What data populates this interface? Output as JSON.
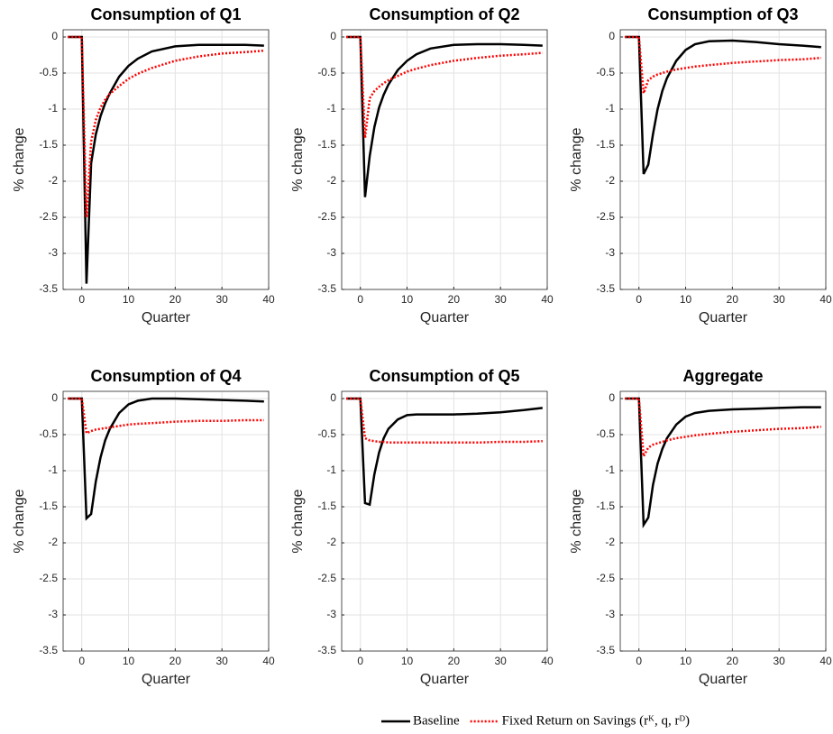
{
  "chart_data": [
    {
      "type": "line",
      "title": "Consumption of Q1",
      "xlabel": "Quarter",
      "ylabel": "% change",
      "x": [
        -3,
        -2,
        -1,
        0,
        1,
        2,
        3,
        4,
        5,
        6,
        8,
        10,
        12,
        15,
        20,
        25,
        30,
        35,
        39
      ],
      "series": [
        {
          "name": "Baseline",
          "color": "#000000",
          "linestyle": "solid",
          "values": [
            0,
            0,
            0,
            0,
            -3.42,
            -1.75,
            -1.35,
            -1.1,
            -0.92,
            -0.78,
            -0.55,
            -0.4,
            -0.3,
            -0.2,
            -0.13,
            -0.11,
            -0.11,
            -0.11,
            -0.12
          ]
        },
        {
          "name": "Fixed Return on Savings (rᴷ, q, rᴰ)",
          "color": "#ff0000",
          "linestyle": "dotted",
          "values": [
            0,
            0,
            0,
            0,
            -2.5,
            -1.45,
            -1.15,
            -0.98,
            -0.87,
            -0.79,
            -0.68,
            -0.58,
            -0.51,
            -0.43,
            -0.33,
            -0.27,
            -0.23,
            -0.21,
            -0.19
          ]
        }
      ],
      "xlim": [
        -4,
        40
      ],
      "xticks": [
        0,
        10,
        20,
        30,
        40
      ],
      "ylim": [
        -3.5,
        0.1
      ],
      "yticks": [
        0,
        -0.5,
        -1,
        -1.5,
        -2,
        -2.5,
        -3,
        -3.5
      ],
      "grid": true
    },
    {
      "type": "line",
      "title": "Consumption of Q2",
      "xlabel": "Quarter",
      "ylabel": "% change",
      "x": [
        -3,
        -2,
        -1,
        0,
        1,
        2,
        3,
        4,
        5,
        6,
        8,
        10,
        12,
        15,
        20,
        25,
        30,
        35,
        39
      ],
      "series": [
        {
          "name": "Baseline",
          "color": "#000000",
          "linestyle": "solid",
          "values": [
            0,
            0,
            0,
            0,
            -2.22,
            -1.65,
            -1.25,
            -0.98,
            -0.8,
            -0.66,
            -0.46,
            -0.33,
            -0.24,
            -0.16,
            -0.11,
            -0.1,
            -0.1,
            -0.11,
            -0.12
          ]
        },
        {
          "name": "Fixed Return on Savings (rᴷ, q, rᴰ)",
          "color": "#ff0000",
          "linestyle": "dotted",
          "values": [
            0,
            0,
            0,
            0,
            -1.4,
            -0.85,
            -0.75,
            -0.69,
            -0.64,
            -0.6,
            -0.54,
            -0.48,
            -0.44,
            -0.39,
            -0.33,
            -0.29,
            -0.26,
            -0.24,
            -0.22
          ]
        }
      ],
      "xlim": [
        -4,
        40
      ],
      "xticks": [
        0,
        10,
        20,
        30,
        40
      ],
      "ylim": [
        -3.5,
        0.1
      ],
      "yticks": [
        0,
        -0.5,
        -1,
        -1.5,
        -2,
        -2.5,
        -3,
        -3.5
      ],
      "grid": true
    },
    {
      "type": "line",
      "title": "Consumption of Q3",
      "xlabel": "Quarter",
      "ylabel": "% change",
      "x": [
        -3,
        -2,
        -1,
        0,
        1,
        2,
        3,
        4,
        5,
        6,
        8,
        10,
        12,
        15,
        20,
        25,
        30,
        35,
        39
      ],
      "series": [
        {
          "name": "Baseline",
          "color": "#000000",
          "linestyle": "solid",
          "values": [
            0,
            0,
            0,
            0,
            -1.9,
            -1.77,
            -1.35,
            -1.0,
            -0.75,
            -0.57,
            -0.33,
            -0.18,
            -0.1,
            -0.06,
            -0.05,
            -0.07,
            -0.1,
            -0.12,
            -0.14
          ]
        },
        {
          "name": "Fixed Return on Savings (rᴷ, q, rᴰ)",
          "color": "#ff0000",
          "linestyle": "dotted",
          "values": [
            0,
            0,
            0,
            0,
            -0.78,
            -0.6,
            -0.55,
            -0.52,
            -0.5,
            -0.48,
            -0.45,
            -0.43,
            -0.41,
            -0.39,
            -0.36,
            -0.34,
            -0.32,
            -0.31,
            -0.29
          ]
        }
      ],
      "xlim": [
        -4,
        40
      ],
      "xticks": [
        0,
        10,
        20,
        30,
        40
      ],
      "ylim": [
        -3.5,
        0.1
      ],
      "yticks": [
        0,
        -0.5,
        -1,
        -1.5,
        -2,
        -2.5,
        -3,
        -3.5
      ],
      "grid": true
    },
    {
      "type": "line",
      "title": "Consumption of Q4",
      "xlabel": "Quarter",
      "ylabel": "% change",
      "x": [
        -3,
        -2,
        -1,
        0,
        1,
        2,
        3,
        4,
        5,
        6,
        8,
        10,
        12,
        15,
        20,
        25,
        30,
        35,
        39
      ],
      "series": [
        {
          "name": "Baseline",
          "color": "#000000",
          "linestyle": "solid",
          "values": [
            0,
            0,
            0,
            0,
            -1.66,
            -1.6,
            -1.15,
            -0.82,
            -0.58,
            -0.42,
            -0.2,
            -0.08,
            -0.03,
            0,
            0,
            -0.01,
            -0.02,
            -0.03,
            -0.04
          ]
        },
        {
          "name": "Fixed Return on Savings (rᴷ, q, rᴰ)",
          "color": "#ff0000",
          "linestyle": "dotted",
          "values": [
            0,
            0,
            0,
            0,
            -0.48,
            -0.45,
            -0.43,
            -0.42,
            -0.41,
            -0.4,
            -0.38,
            -0.36,
            -0.35,
            -0.34,
            -0.32,
            -0.31,
            -0.31,
            -0.3,
            -0.3
          ]
        }
      ],
      "xlim": [
        -4,
        40
      ],
      "xticks": [
        0,
        10,
        20,
        30,
        40
      ],
      "ylim": [
        -3.5,
        0.1
      ],
      "yticks": [
        0,
        -0.5,
        -1,
        -1.5,
        -2,
        -2.5,
        -3,
        -3.5
      ],
      "grid": true
    },
    {
      "type": "line",
      "title": "Consumption of Q5",
      "xlabel": "Quarter",
      "ylabel": "% change",
      "x": [
        -3,
        -2,
        -1,
        0,
        1,
        2,
        3,
        4,
        5,
        6,
        8,
        10,
        12,
        15,
        20,
        25,
        30,
        35,
        39
      ],
      "series": [
        {
          "name": "Baseline",
          "color": "#000000",
          "linestyle": "solid",
          "values": [
            0,
            0,
            0,
            0,
            -1.45,
            -1.47,
            -1.05,
            -0.75,
            -0.55,
            -0.42,
            -0.29,
            -0.23,
            -0.22,
            -0.22,
            -0.22,
            -0.21,
            -0.19,
            -0.16,
            -0.13
          ]
        },
        {
          "name": "Fixed Return on Savings (rᴷ, q, rᴰ)",
          "color": "#ff0000",
          "linestyle": "dotted",
          "values": [
            0,
            0,
            0,
            0,
            -0.55,
            -0.58,
            -0.59,
            -0.6,
            -0.6,
            -0.61,
            -0.61,
            -0.61,
            -0.61,
            -0.61,
            -0.61,
            -0.61,
            -0.6,
            -0.6,
            -0.59
          ]
        }
      ],
      "xlim": [
        -4,
        40
      ],
      "xticks": [
        0,
        10,
        20,
        30,
        40
      ],
      "ylim": [
        -3.5,
        0.1
      ],
      "yticks": [
        0,
        -0.5,
        -1,
        -1.5,
        -2,
        -2.5,
        -3,
        -3.5
      ],
      "grid": true
    },
    {
      "type": "line",
      "title": "Aggregate",
      "xlabel": "Quarter",
      "ylabel": "% change",
      "x": [
        -3,
        -2,
        -1,
        0,
        1,
        2,
        3,
        4,
        5,
        6,
        8,
        10,
        12,
        15,
        20,
        25,
        30,
        35,
        39
      ],
      "series": [
        {
          "name": "Baseline",
          "color": "#000000",
          "linestyle": "solid",
          "values": [
            0,
            0,
            0,
            0,
            -1.75,
            -1.65,
            -1.2,
            -0.9,
            -0.7,
            -0.55,
            -0.36,
            -0.25,
            -0.2,
            -0.17,
            -0.15,
            -0.14,
            -0.13,
            -0.12,
            -0.12
          ]
        },
        {
          "name": "Fixed Return on Savings (rᴷ, q, rᴰ)",
          "color": "#ff0000",
          "linestyle": "dotted",
          "values": [
            0,
            0,
            0,
            0,
            -0.8,
            -0.68,
            -0.64,
            -0.62,
            -0.6,
            -0.58,
            -0.55,
            -0.53,
            -0.51,
            -0.49,
            -0.46,
            -0.44,
            -0.42,
            -0.41,
            -0.39
          ]
        }
      ],
      "xlim": [
        -4,
        40
      ],
      "xticks": [
        0,
        10,
        20,
        30,
        40
      ],
      "ylim": [
        -3.5,
        0.1
      ],
      "yticks": [
        0,
        -0.5,
        -1,
        -1.5,
        -2,
        -2.5,
        -3,
        -3.5
      ],
      "grid": true
    }
  ]
}
